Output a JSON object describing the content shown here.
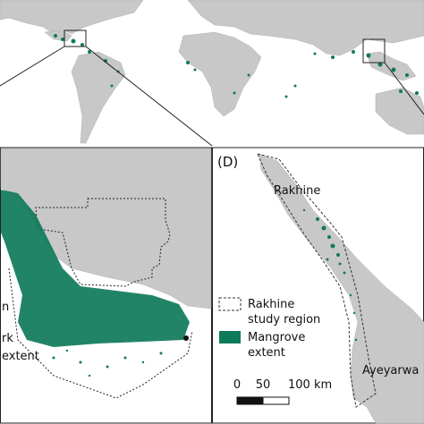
{
  "panels": {
    "left": {
      "legend_fragments": [
        "n",
        "rk",
        "extent"
      ]
    },
    "right": {
      "label": "(D)",
      "places": [
        "Rakhine",
        "Ayeyarwa"
      ],
      "legend": [
        {
          "lines": [
            "Rakhine",
            "study region"
          ]
        },
        {
          "lines": [
            "Mangrove",
            "extent"
          ]
        }
      ],
      "scale": [
        "0",
        "50",
        "100 km"
      ]
    }
  }
}
